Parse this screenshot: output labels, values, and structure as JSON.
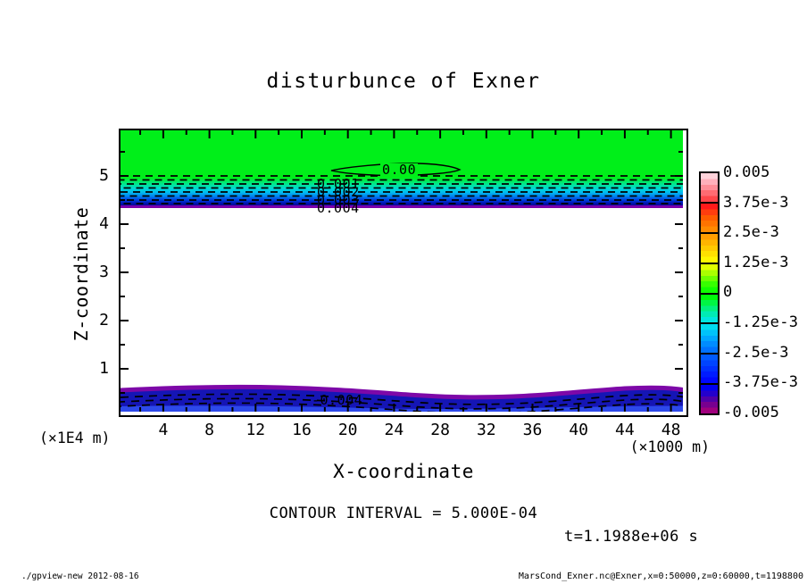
{
  "title": "disturbunce of Exner",
  "axes": {
    "x": {
      "label": "X-coordinate",
      "unit": "(×1000 m)",
      "ticks": [
        4,
        8,
        12,
        16,
        20,
        24,
        28,
        32,
        36,
        40,
        44,
        48
      ]
    },
    "y": {
      "label": "Z-coordinate",
      "unit": "(×1E4 m)",
      "ticks": [
        1,
        2,
        3,
        4,
        5
      ]
    }
  },
  "annotations": {
    "contour_interval": "CONTOUR INTERVAL = 5.000E-04",
    "time": "t=1.1988e+06 s",
    "zero_contour_label": "0.00",
    "upper_contour_labels": [
      "0.001",
      "0.002",
      "0.003",
      "0.004"
    ],
    "surface_contour_label": "-0.004"
  },
  "footer": {
    "left": "./gpview-new  2012-08-16",
    "right": "MarsCond_Exner.nc@Exner,x=0:50000,z=0:60000,t=1198800"
  },
  "colorbar": {
    "labels": [
      "0.005",
      "3.75e-3",
      "2.5e-3",
      "1.25e-3",
      "0",
      "-1.25e-3",
      "-2.5e-3",
      "-3.75e-3",
      "-0.005"
    ],
    "cells": [
      {
        "range": "3.75e-3 to 0.005",
        "colors": [
          "#ffd2da",
          "#ffb0bb",
          "#ff8e98",
          "#ff6b72",
          "#ff474b"
        ]
      },
      {
        "range": "2.5e-3 to 3.75e-3",
        "colors": [
          "#ff1a1a",
          "#ff3d0e",
          "#ff5c00",
          "#ff7300",
          "#ff8a00"
        ]
      },
      {
        "range": "1.25e-3 to 2.5e-3",
        "colors": [
          "#ff9e00",
          "#ffb400",
          "#ffca00",
          "#ffe000",
          "#fff600"
        ]
      },
      {
        "range": "0 to 1.25e-3",
        "colors": [
          "#e0ff00",
          "#aaff00",
          "#6eff00",
          "#37ff00",
          "#0fff00"
        ]
      },
      {
        "range": "-1.25e-3 to 0",
        "colors": [
          "#00fa0a",
          "#00f544",
          "#00f07e",
          "#00ebb4",
          "#00e6e0"
        ]
      },
      {
        "range": "-2.5e-3 to -1.25e-3",
        "colors": [
          "#00dcf0",
          "#00c2fa",
          "#00a6ff",
          "#008cff",
          "#0072ff"
        ]
      },
      {
        "range": "-3.75e-3 to -2.5e-3",
        "colors": [
          "#005aff",
          "#0044ff",
          "#0030ff",
          "#001cff",
          "#0008ff"
        ]
      },
      {
        "range": "-0.005 to -3.75e-3",
        "colors": [
          "#0000f0",
          "#2400cc",
          "#5000a8",
          "#78008f",
          "#a0007d"
        ]
      }
    ]
  },
  "plot_colors": {
    "green_top": "#00ef19",
    "purple_line": "#7a00aa",
    "band_navy": "#1515b5",
    "band_purple": "#7d08a8",
    "band_bottom_blue": "#2d49ea",
    "gradient_stops": [
      [
        "#00ef19",
        0
      ],
      [
        "#00ec5a",
        12
      ],
      [
        "#00e49c",
        26
      ],
      [
        "#00d8d8",
        40
      ],
      [
        "#00b8f0",
        54
      ],
      [
        "#0080f0",
        68
      ],
      [
        "#0040dc",
        80
      ],
      [
        "#0014b4",
        92
      ],
      [
        "#000896",
        100
      ]
    ]
  },
  "chart_data": {
    "type": "heatmap",
    "title": "disturbunce of Exner",
    "xlabel": "X-coordinate (×1000 m)",
    "ylabel": "Z-coordinate (×1E4 m)",
    "xlim": [
      0,
      50
    ],
    "ylim": [
      0,
      6
    ],
    "contour_interval": 0.0005,
    "color_range": [
      -0.005,
      0.005
    ],
    "legend_position": "right colorbar, 8 tone cells from -0.005 (purple/blue) through 0 (green) to 0.005 (pink/red)",
    "grid": false,
    "contour_style": "negative contours dashed, positive/zero solid",
    "bands": [
      {
        "z_range": [
          4.75,
          6.0
        ],
        "value": "approximately 0 (uniform green); closed 0.00 solid contour centered near x=22, z=5.15"
      },
      {
        "z_range": [
          4.45,
          4.75
        ],
        "value": "sharp gradient 0 down to -0.005; dense dashed contours labeled 0.001, 0.002, 0.003, 0.004 stacked near x=18"
      },
      {
        "z_range": [
          0.45,
          4.45
        ],
        "value": "below -0.005 (outside color range, rendered white)"
      },
      {
        "z_range": [
          0.0,
          0.45
        ],
        "value": "wavy near-surface band rising from -0.005 (purple top edge) to about -0.0035 (blue), dashed contour labeled -0.004"
      }
    ]
  }
}
